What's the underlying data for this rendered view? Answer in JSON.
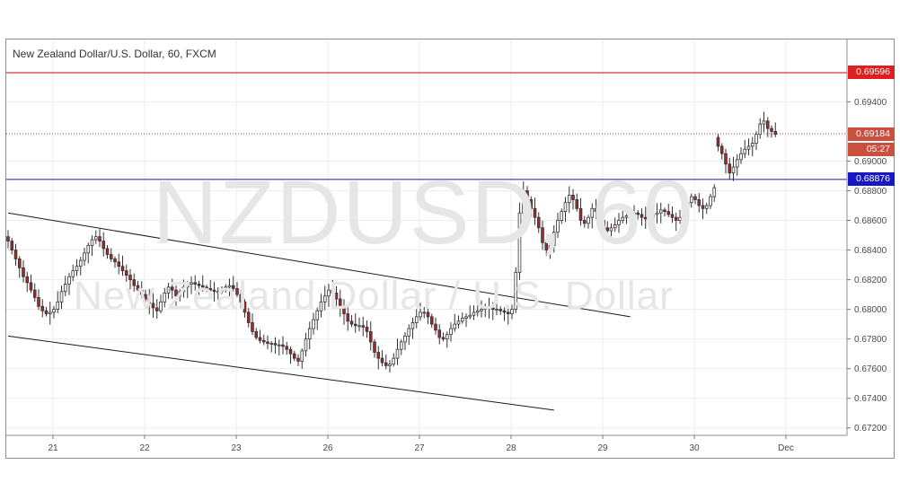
{
  "chart_title": "New Zealand Dollar/U.S. Dollar, 60, FXCM",
  "watermark": {
    "symbol": "NZDUSD, 60",
    "description": "New Zealand Dollar / U.S. Dollar"
  },
  "price_tags": {
    "resistance": "0.69596",
    "last_price": "0.69184",
    "countdown": "05:27",
    "support": "0.68876"
  },
  "colors": {
    "up_candle": "#ffffff",
    "down_candle": "#9e2a2a",
    "candle_outline": "#333333",
    "resistance_line": "#cc0000",
    "support_line": "#1a1aa8",
    "last_price_line": "#c0392b",
    "trend_channel": "#1a1a1a",
    "grid": "#ededed"
  },
  "chart_data": {
    "type": "candlestick",
    "symbol": "NZDUSD",
    "timeframe": "60",
    "source": "FXCM",
    "x_tick_labels": [
      "21",
      "22",
      "23",
      "26",
      "27",
      "28",
      "29",
      "30",
      "Dec"
    ],
    "y_tick_labels": [
      "0.69400",
      "0.69000",
      "0.68800",
      "0.68600",
      "0.68400",
      "0.68200",
      "0.68000",
      "0.67800",
      "0.67600",
      "0.67400",
      "0.67200"
    ],
    "ylim": [
      0.6715,
      0.6982
    ],
    "grid": true,
    "horizontal_lines": [
      {
        "label": "resistance",
        "price": 0.69596
      },
      {
        "label": "support",
        "price": 0.68876
      },
      {
        "label": "last_price",
        "price": 0.69184
      }
    ],
    "trend_channel": {
      "upper": [
        {
          "bar": 0,
          "price": 0.6865
        },
        {
          "bar": 163,
          "price": 0.6795
        }
      ],
      "lower": [
        {
          "bar": 0,
          "price": 0.6782
        },
        {
          "bar": 143,
          "price": 0.6732
        }
      ]
    },
    "close_path": [
      0.6846,
      0.684,
      0.6834,
      0.6828,
      0.6822,
      0.6818,
      0.6813,
      0.6808,
      0.6802,
      0.6799,
      0.6797,
      0.6798,
      0.68,
      0.6805,
      0.6812,
      0.6817,
      0.6822,
      0.6826,
      0.6829,
      0.6833,
      0.6838,
      0.6843,
      0.6847,
      0.6849,
      0.6846,
      0.6841,
      0.6837,
      0.6834,
      0.6832,
      0.6829,
      0.6826,
      0.6823,
      0.682,
      0.6816,
      0.6813,
      0.681,
      0.6807,
      0.6804,
      0.6801,
      0.6799,
      0.6805,
      0.6811,
      0.6815,
      0.6813,
      0.6809,
      0.6812,
      0.6815,
      0.6817,
      0.6818,
      0.6817,
      0.6816,
      0.6815,
      0.6814,
      0.6813,
      0.6812,
      0.6812,
      0.6813,
      0.6815,
      0.6816,
      0.6814,
      0.681,
      0.6805,
      0.6798,
      0.6791,
      0.6785,
      0.6781,
      0.6779,
      0.6778,
      0.6777,
      0.6777,
      0.6776,
      0.6776,
      0.6775,
      0.6773,
      0.677,
      0.6767,
      0.6765,
      0.6772,
      0.678,
      0.6787,
      0.6793,
      0.6799,
      0.6805,
      0.6809,
      0.6813,
      0.6811,
      0.6807,
      0.6802,
      0.6797,
      0.6792,
      0.679,
      0.6789,
      0.6789,
      0.6788,
      0.6785,
      0.6778,
      0.6771,
      0.6767,
      0.6764,
      0.6762,
      0.6763,
      0.6767,
      0.6773,
      0.6778,
      0.6782,
      0.6787,
      0.6791,
      0.6795,
      0.6798,
      0.6798,
      0.6795,
      0.679,
      0.6786,
      0.6781,
      0.678,
      0.6783,
      0.6787,
      0.679,
      0.6792,
      0.6794,
      0.6795,
      0.6796,
      0.6798,
      0.6799,
      0.68,
      0.6801,
      0.6801,
      0.68,
      0.68,
      0.6799,
      0.6798,
      0.6797,
      0.68,
      0.6825,
      0.6865,
      0.688,
      0.6874,
      0.6868,
      0.6862,
      0.6855,
      0.6845,
      0.684,
      0.6843,
      0.6852,
      0.686,
      0.6866,
      0.6872,
      0.6877,
      0.6874,
      0.6868,
      0.686,
      0.6858,
      0.6862,
      0.6868,
      0.6866,
      0.686,
      0.6855,
      0.6853,
      0.6855,
      0.6857,
      0.686,
      0.6862,
      0.6863,
      0.6864,
      0.6865,
      0.6864,
      0.6862,
      0.6861,
      0.6862,
      0.6864,
      0.6865,
      0.6867,
      0.6866,
      0.6864,
      0.6862,
      0.686,
      0.6862,
      0.6866,
      0.6872,
      0.6876,
      0.6874,
      0.687,
      0.6868,
      0.687,
      0.6876,
      0.6882
    ],
    "gap_after_close": [
      0.691,
      0.6905,
      0.6898,
      0.6892,
      0.6896,
      0.6901,
      0.6905,
      0.6908,
      0.691,
      0.6912,
      0.6918,
      0.6925,
      0.6927,
      0.6922,
      0.692,
      0.6918
    ]
  }
}
